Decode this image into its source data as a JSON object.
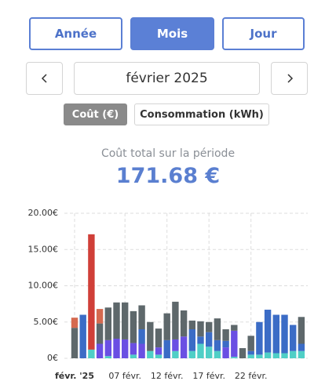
{
  "period_tabs": [
    "Année",
    "Mois",
    "Jour"
  ],
  "date_label": "février 2025",
  "metric_tabs": [
    "Coût (€)",
    "Consommation (kWh)"
  ],
  "summary": {
    "label": "Coût total sur la période",
    "total": "171.68 €"
  },
  "chart_data": {
    "type": "stacked-bar",
    "categories": [
      "févr. '25",
      null,
      null,
      null,
      null,
      null,
      "07 févr.",
      null,
      null,
      null,
      null,
      "12 févr.",
      null,
      null,
      null,
      null,
      "17 févr.",
      null,
      null,
      null,
      null,
      "22 févr.",
      null,
      null,
      null,
      null,
      null,
      null
    ],
    "series": [
      {
        "color": "#4fcfc6",
        "values": [
          0,
          0,
          1.2,
          0,
          0.3,
          0,
          0,
          0.5,
          0,
          1.0,
          0.5,
          0,
          1.0,
          0,
          1.0,
          2.0,
          1.6,
          1.0,
          0,
          0.2,
          0,
          0.5,
          0.5,
          0.8,
          0.7,
          0.7,
          1.0,
          1.0
        ]
      },
      {
        "color": "#6a4fe3",
        "values": [
          0,
          0,
          0,
          2.0,
          2.2,
          2.7,
          2.6,
          1.6,
          2.0,
          0,
          1.0,
          0,
          1.6,
          3.0,
          0,
          0,
          0,
          0,
          1.5,
          3.6,
          0,
          0,
          0,
          0,
          0,
          0,
          0,
          0
        ]
      },
      {
        "color": "#3b6cc6",
        "values": [
          0,
          6.0,
          0,
          0,
          0,
          0,
          0,
          0,
          2.0,
          0,
          0,
          2.5,
          0,
          0,
          3.0,
          1.0,
          2.0,
          1.5,
          0.9,
          0,
          0,
          0.5,
          4.5,
          5.9,
          5.3,
          5.3,
          3.6,
          1.0
        ]
      },
      {
        "color": "#5e686b",
        "values": [
          4.2,
          0,
          0,
          2.8,
          4.5,
          5.0,
          5.1,
          4.4,
          3.3,
          4.0,
          2.6,
          3.7,
          5.2,
          3.6,
          1.2,
          2.1,
          1.4,
          3.0,
          1.6,
          0.8,
          1.4,
          2.1,
          0,
          0,
          0,
          0,
          0,
          3.7
        ]
      },
      {
        "color": "#d5694f",
        "values": [
          1.4,
          0,
          0,
          2.0,
          0,
          0,
          0,
          0,
          0,
          0,
          0,
          0,
          0,
          0,
          0,
          0,
          0,
          0,
          0,
          0,
          0,
          0,
          0,
          0,
          0,
          0,
          0,
          0
        ]
      },
      {
        "color": "#d03f38",
        "values": [
          0,
          0,
          15.9,
          0,
          0,
          0,
          0,
          0,
          0,
          0,
          0,
          0,
          0,
          0,
          0,
          0,
          0,
          0,
          0,
          0,
          0,
          0,
          0,
          0,
          0,
          0,
          0,
          0
        ]
      }
    ],
    "ylim": [
      0,
      20
    ],
    "yticks": [
      {
        "value": 0,
        "label": "0€"
      },
      {
        "value": 5,
        "label": "5.00€"
      },
      {
        "value": 10,
        "label": "10.00€"
      },
      {
        "value": 15,
        "label": "15.00€"
      },
      {
        "value": 20,
        "label": "20.00€"
      }
    ],
    "grid": true
  }
}
